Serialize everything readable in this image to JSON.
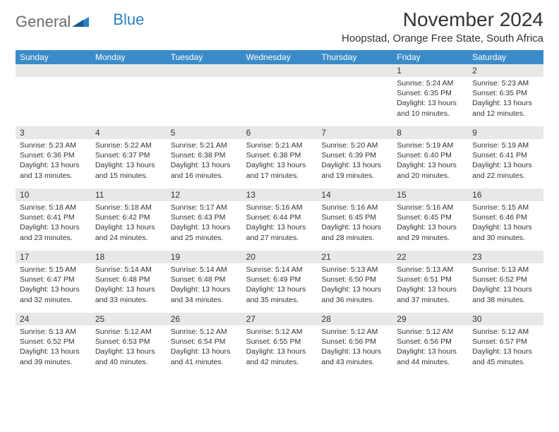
{
  "logo": {
    "part1": "General",
    "part2": "Blue"
  },
  "title": "November 2024",
  "location": "Hoopstad, Orange Free State, South Africa",
  "day_names": [
    "Sunday",
    "Monday",
    "Tuesday",
    "Wednesday",
    "Thursday",
    "Friday",
    "Saturday"
  ],
  "colors": {
    "header_bg": "#3b8bc9",
    "header_text": "#ffffff",
    "daynum_bg": "#e8e8e8",
    "text": "#333333",
    "logo_gray": "#6b6b6b",
    "logo_blue": "#2b7fc3"
  },
  "weeks": [
    [
      {
        "num": "",
        "lines": []
      },
      {
        "num": "",
        "lines": []
      },
      {
        "num": "",
        "lines": []
      },
      {
        "num": "",
        "lines": []
      },
      {
        "num": "",
        "lines": []
      },
      {
        "num": "1",
        "lines": [
          "Sunrise: 5:24 AM",
          "Sunset: 6:35 PM",
          "Daylight: 13 hours",
          "and 10 minutes."
        ]
      },
      {
        "num": "2",
        "lines": [
          "Sunrise: 5:23 AM",
          "Sunset: 6:35 PM",
          "Daylight: 13 hours",
          "and 12 minutes."
        ]
      }
    ],
    [
      {
        "num": "3",
        "lines": [
          "Sunrise: 5:23 AM",
          "Sunset: 6:36 PM",
          "Daylight: 13 hours",
          "and 13 minutes."
        ]
      },
      {
        "num": "4",
        "lines": [
          "Sunrise: 5:22 AM",
          "Sunset: 6:37 PM",
          "Daylight: 13 hours",
          "and 15 minutes."
        ]
      },
      {
        "num": "5",
        "lines": [
          "Sunrise: 5:21 AM",
          "Sunset: 6:38 PM",
          "Daylight: 13 hours",
          "and 16 minutes."
        ]
      },
      {
        "num": "6",
        "lines": [
          "Sunrise: 5:21 AM",
          "Sunset: 6:38 PM",
          "Daylight: 13 hours",
          "and 17 minutes."
        ]
      },
      {
        "num": "7",
        "lines": [
          "Sunrise: 5:20 AM",
          "Sunset: 6:39 PM",
          "Daylight: 13 hours",
          "and 19 minutes."
        ]
      },
      {
        "num": "8",
        "lines": [
          "Sunrise: 5:19 AM",
          "Sunset: 6:40 PM",
          "Daylight: 13 hours",
          "and 20 minutes."
        ]
      },
      {
        "num": "9",
        "lines": [
          "Sunrise: 5:19 AM",
          "Sunset: 6:41 PM",
          "Daylight: 13 hours",
          "and 22 minutes."
        ]
      }
    ],
    [
      {
        "num": "10",
        "lines": [
          "Sunrise: 5:18 AM",
          "Sunset: 6:41 PM",
          "Daylight: 13 hours",
          "and 23 minutes."
        ]
      },
      {
        "num": "11",
        "lines": [
          "Sunrise: 5:18 AM",
          "Sunset: 6:42 PM",
          "Daylight: 13 hours",
          "and 24 minutes."
        ]
      },
      {
        "num": "12",
        "lines": [
          "Sunrise: 5:17 AM",
          "Sunset: 6:43 PM",
          "Daylight: 13 hours",
          "and 25 minutes."
        ]
      },
      {
        "num": "13",
        "lines": [
          "Sunrise: 5:16 AM",
          "Sunset: 6:44 PM",
          "Daylight: 13 hours",
          "and 27 minutes."
        ]
      },
      {
        "num": "14",
        "lines": [
          "Sunrise: 5:16 AM",
          "Sunset: 6:45 PM",
          "Daylight: 13 hours",
          "and 28 minutes."
        ]
      },
      {
        "num": "15",
        "lines": [
          "Sunrise: 5:16 AM",
          "Sunset: 6:45 PM",
          "Daylight: 13 hours",
          "and 29 minutes."
        ]
      },
      {
        "num": "16",
        "lines": [
          "Sunrise: 5:15 AM",
          "Sunset: 6:46 PM",
          "Daylight: 13 hours",
          "and 30 minutes."
        ]
      }
    ],
    [
      {
        "num": "17",
        "lines": [
          "Sunrise: 5:15 AM",
          "Sunset: 6:47 PM",
          "Daylight: 13 hours",
          "and 32 minutes."
        ]
      },
      {
        "num": "18",
        "lines": [
          "Sunrise: 5:14 AM",
          "Sunset: 6:48 PM",
          "Daylight: 13 hours",
          "and 33 minutes."
        ]
      },
      {
        "num": "19",
        "lines": [
          "Sunrise: 5:14 AM",
          "Sunset: 6:48 PM",
          "Daylight: 13 hours",
          "and 34 minutes."
        ]
      },
      {
        "num": "20",
        "lines": [
          "Sunrise: 5:14 AM",
          "Sunset: 6:49 PM",
          "Daylight: 13 hours",
          "and 35 minutes."
        ]
      },
      {
        "num": "21",
        "lines": [
          "Sunrise: 5:13 AM",
          "Sunset: 6:50 PM",
          "Daylight: 13 hours",
          "and 36 minutes."
        ]
      },
      {
        "num": "22",
        "lines": [
          "Sunrise: 5:13 AM",
          "Sunset: 6:51 PM",
          "Daylight: 13 hours",
          "and 37 minutes."
        ]
      },
      {
        "num": "23",
        "lines": [
          "Sunrise: 5:13 AM",
          "Sunset: 6:52 PM",
          "Daylight: 13 hours",
          "and 38 minutes."
        ]
      }
    ],
    [
      {
        "num": "24",
        "lines": [
          "Sunrise: 5:13 AM",
          "Sunset: 6:52 PM",
          "Daylight: 13 hours",
          "and 39 minutes."
        ]
      },
      {
        "num": "25",
        "lines": [
          "Sunrise: 5:12 AM",
          "Sunset: 6:53 PM",
          "Daylight: 13 hours",
          "and 40 minutes."
        ]
      },
      {
        "num": "26",
        "lines": [
          "Sunrise: 5:12 AM",
          "Sunset: 6:54 PM",
          "Daylight: 13 hours",
          "and 41 minutes."
        ]
      },
      {
        "num": "27",
        "lines": [
          "Sunrise: 5:12 AM",
          "Sunset: 6:55 PM",
          "Daylight: 13 hours",
          "and 42 minutes."
        ]
      },
      {
        "num": "28",
        "lines": [
          "Sunrise: 5:12 AM",
          "Sunset: 6:56 PM",
          "Daylight: 13 hours",
          "and 43 minutes."
        ]
      },
      {
        "num": "29",
        "lines": [
          "Sunrise: 5:12 AM",
          "Sunset: 6:56 PM",
          "Daylight: 13 hours",
          "and 44 minutes."
        ]
      },
      {
        "num": "30",
        "lines": [
          "Sunrise: 5:12 AM",
          "Sunset: 6:57 PM",
          "Daylight: 13 hours",
          "and 45 minutes."
        ]
      }
    ]
  ]
}
